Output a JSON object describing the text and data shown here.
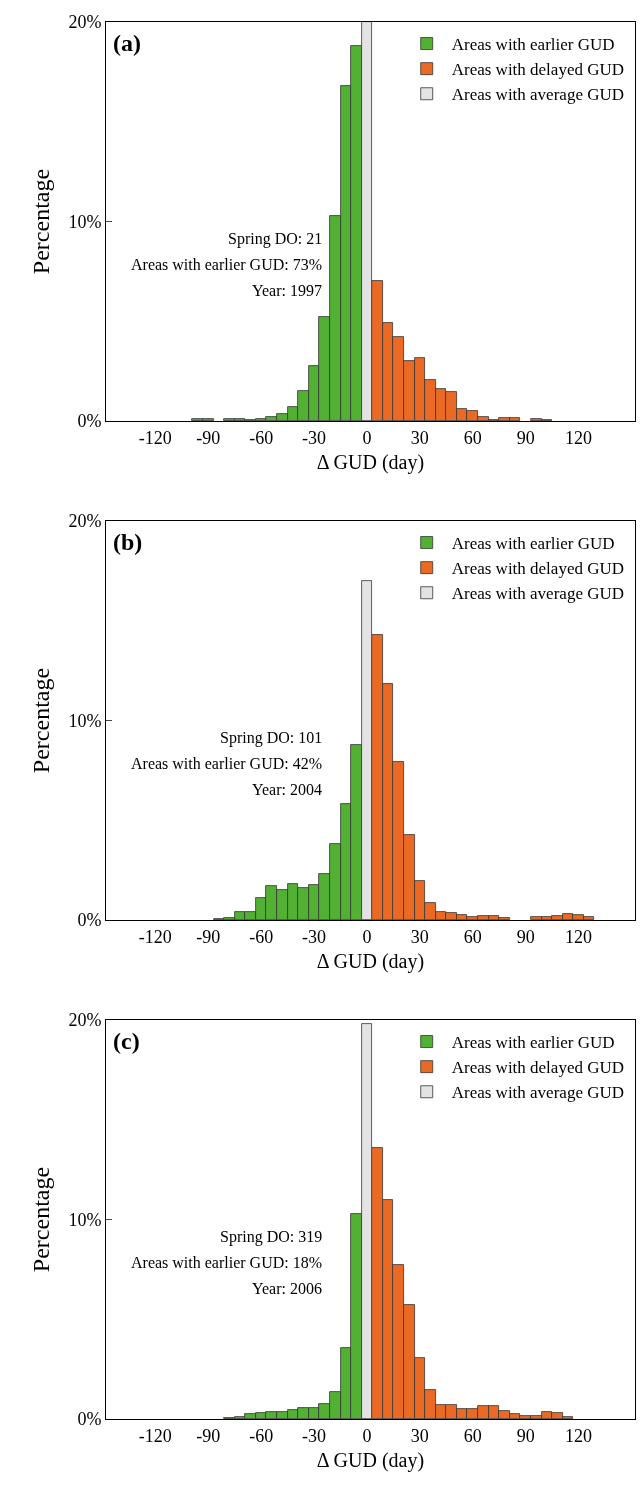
{
  "chart_data": [
    {
      "type": "histogram",
      "xlabel": "Δ GUD (day)",
      "ylabel": "Percentage",
      "annotations": [
        "(a)",
        "Spring DO: 21",
        "Areas with earlier GUD: 73%",
        "Year: 1997"
      ],
      "bins": [
        -147,
        -141,
        -135,
        -129,
        -123,
        -117,
        -111,
        -105,
        -99,
        -93,
        -87,
        -81,
        -75,
        -69,
        -63,
        -57,
        -51,
        -45,
        -39,
        -33,
        -27,
        -21,
        -15,
        -9,
        -3,
        3,
        9,
        15,
        21,
        27,
        33,
        39,
        45,
        51,
        57,
        63,
        69,
        75,
        81,
        87,
        93,
        99,
        105,
        111,
        117,
        123,
        129,
        135,
        141,
        147
      ],
      "series": [
        {
          "name": "Areas with earlier GUD",
          "color": "#52b032",
          "values": [
            null,
            null,
            null,
            null,
            null,
            null,
            null,
            null,
            0.1,
            0.12,
            null,
            0.1,
            0.1,
            0.05,
            0.1,
            0.22,
            0.36,
            0.72,
            1.5,
            2.75,
            5.2,
            10.3,
            16.8,
            18.8,
            null,
            null,
            null,
            null,
            null,
            null,
            null,
            null,
            null,
            null,
            null,
            null,
            null,
            null,
            null,
            null,
            null,
            null,
            null,
            null,
            null,
            null,
            null,
            null,
            null
          ]
        },
        {
          "name": "Areas with delayed GUD",
          "color": "#ea6a24",
          "values": [
            null,
            null,
            null,
            null,
            null,
            null,
            null,
            null,
            null,
            null,
            null,
            null,
            null,
            null,
            null,
            null,
            null,
            null,
            null,
            null,
            null,
            null,
            null,
            null,
            null,
            7.0,
            4.9,
            4.2,
            3.0,
            3.15,
            2.07,
            1.58,
            1.44,
            0.61,
            0.52,
            0.18,
            0.07,
            0.13,
            0.13,
            null,
            0.11,
            0.05,
            null,
            null,
            null,
            null,
            null,
            null,
            null
          ]
        },
        {
          "name": "Areas with average GUD",
          "color": "#e3e3e5",
          "values": [
            null,
            null,
            null,
            null,
            null,
            null,
            null,
            null,
            null,
            null,
            null,
            null,
            null,
            null,
            null,
            null,
            null,
            null,
            null,
            null,
            null,
            null,
            null,
            null,
            20,
            null,
            null,
            null,
            null,
            null,
            null,
            null,
            null,
            null,
            null,
            null,
            null,
            null,
            null,
            null,
            null,
            null,
            null,
            null,
            null,
            null,
            null,
            null,
            null
          ]
        }
      ],
      "xlim": [
        -148,
        152
      ],
      "xticks": [
        -120,
        -90,
        -60,
        -30,
        0,
        30,
        60,
        90,
        120
      ],
      "ylim": [
        0,
        20
      ],
      "yticks": [
        {
          "value": 0,
          "label": "0%"
        },
        {
          "value": 10,
          "label": "10%"
        },
        {
          "value": 20,
          "label": "20%"
        }
      ],
      "legend": "top right"
    },
    {
      "type": "histogram",
      "xlabel": "Δ GUD (day)",
      "ylabel": "Percentage",
      "annotations": [
        "(b)",
        "Spring DO: 101",
        "Areas with earlier GUD: 42%",
        "Year: 2004"
      ],
      "bins": [
        -147,
        -141,
        -135,
        -129,
        -123,
        -117,
        -111,
        -105,
        -99,
        -93,
        -87,
        -81,
        -75,
        -69,
        -63,
        -57,
        -51,
        -45,
        -39,
        -33,
        -27,
        -21,
        -15,
        -9,
        -3,
        3,
        9,
        15,
        21,
        27,
        33,
        39,
        45,
        51,
        57,
        63,
        69,
        75,
        81,
        87,
        93,
        99,
        105,
        111,
        117,
        123,
        129,
        135,
        141,
        147
      ],
      "series": [
        {
          "name": "Areas with earlier GUD",
          "color": "#52b032",
          "values": [
            null,
            null,
            null,
            null,
            null,
            null,
            null,
            null,
            null,
            null,
            0.07,
            0.11,
            0.38,
            0.41,
            1.09,
            1.72,
            1.52,
            1.79,
            1.6,
            1.74,
            2.33,
            3.82,
            5.82,
            8.75,
            null,
            null,
            null,
            null,
            null,
            null,
            null,
            null,
            null,
            null,
            null,
            null,
            null,
            null,
            null,
            null,
            null,
            null,
            null,
            null,
            null,
            null,
            null,
            null,
            null
          ]
        },
        {
          "name": "Areas with delayed GUD",
          "color": "#ea6a24",
          "values": [
            null,
            null,
            null,
            null,
            null,
            null,
            null,
            null,
            null,
            null,
            null,
            null,
            null,
            null,
            null,
            null,
            null,
            null,
            null,
            null,
            null,
            null,
            null,
            null,
            null,
            14.3,
            11.85,
            7.92,
            4.25,
            1.97,
            0.84,
            0.41,
            0.36,
            0.23,
            0.14,
            0.2,
            0.18,
            0.09,
            null,
            null,
            0.14,
            0.14,
            0.18,
            0.29,
            0.23,
            0.14,
            null,
            null,
            null
          ]
        },
        {
          "name": "Areas with average GUD",
          "color": "#e3e3e5",
          "values": [
            null,
            null,
            null,
            null,
            null,
            null,
            null,
            null,
            null,
            null,
            null,
            null,
            null,
            null,
            null,
            null,
            null,
            null,
            null,
            null,
            null,
            null,
            null,
            null,
            17.0,
            null,
            null,
            null,
            null,
            null,
            null,
            null,
            null,
            null,
            null,
            null,
            null,
            null,
            null,
            null,
            null,
            null,
            null,
            null,
            null,
            null,
            null,
            null,
            null
          ]
        }
      ],
      "xlim": [
        -148,
        152
      ],
      "xticks": [
        -120,
        -90,
        -60,
        -30,
        0,
        30,
        60,
        90,
        120
      ],
      "ylim": [
        0,
        20
      ],
      "yticks": [
        {
          "value": 0,
          "label": "0%"
        },
        {
          "value": 10,
          "label": "10%"
        },
        {
          "value": 20,
          "label": "20%"
        }
      ],
      "legend": "top right"
    },
    {
      "type": "histogram",
      "xlabel": "Δ GUD (day)",
      "ylabel": "Percentage",
      "annotations": [
        "(c)",
        "Spring DO: 319",
        "Areas with earlier GUD: 18%",
        "Year: 2006"
      ],
      "bins": [
        -147,
        -141,
        -135,
        -129,
        -123,
        -117,
        -111,
        -105,
        -99,
        -93,
        -87,
        -81,
        -75,
        -69,
        -63,
        -57,
        -51,
        -45,
        -39,
        -33,
        -27,
        -21,
        -15,
        -9,
        -3,
        3,
        9,
        15,
        21,
        27,
        33,
        39,
        45,
        51,
        57,
        63,
        69,
        75,
        81,
        87,
        93,
        99,
        105,
        111,
        117,
        123,
        129,
        135,
        141,
        147
      ],
      "series": [
        {
          "name": "Areas with earlier GUD",
          "color": "#52b032",
          "values": [
            null,
            null,
            null,
            null,
            null,
            null,
            null,
            null,
            null,
            null,
            null,
            0.05,
            0.09,
            0.23,
            0.3,
            0.36,
            0.36,
            0.45,
            0.57,
            0.54,
            0.75,
            1.34,
            3.55,
            10.3,
            null,
            null,
            null,
            null,
            null,
            null,
            null,
            null,
            null,
            null,
            null,
            null,
            null,
            null,
            null,
            null,
            null,
            null,
            null,
            null,
            null,
            null,
            null,
            null,
            null
          ]
        },
        {
          "name": "Areas with delayed GUD",
          "color": "#ea6a24",
          "values": [
            null,
            null,
            null,
            null,
            null,
            null,
            null,
            null,
            null,
            null,
            null,
            null,
            null,
            null,
            null,
            null,
            null,
            null,
            null,
            null,
            null,
            null,
            null,
            null,
            null,
            13.6,
            11.0,
            7.7,
            5.7,
            3.08,
            1.43,
            0.68,
            0.68,
            0.48,
            0.48,
            0.66,
            0.63,
            0.39,
            0.23,
            0.14,
            0.16,
            0.36,
            0.29,
            0.09,
            null,
            null,
            null,
            null,
            null
          ]
        },
        {
          "name": "Areas with average GUD",
          "color": "#e3e3e5",
          "values": [
            null,
            null,
            null,
            null,
            null,
            null,
            null,
            null,
            null,
            null,
            null,
            null,
            null,
            null,
            null,
            null,
            null,
            null,
            null,
            null,
            null,
            null,
            null,
            null,
            19.8,
            null,
            null,
            null,
            null,
            null,
            null,
            null,
            null,
            null,
            null,
            null,
            null,
            null,
            null,
            null,
            null,
            null,
            null,
            null,
            null,
            null,
            null,
            null,
            null
          ]
        }
      ],
      "xlim": [
        -148,
        152
      ],
      "xticks": [
        -120,
        -90,
        -60,
        -30,
        0,
        30,
        60,
        90,
        120
      ],
      "ylim": [
        0,
        20
      ],
      "yticks": [
        {
          "value": 0,
          "label": "0%"
        },
        {
          "value": 10,
          "label": "10%"
        },
        {
          "value": 20,
          "label": "20%"
        }
      ],
      "legend": "top right"
    }
  ]
}
